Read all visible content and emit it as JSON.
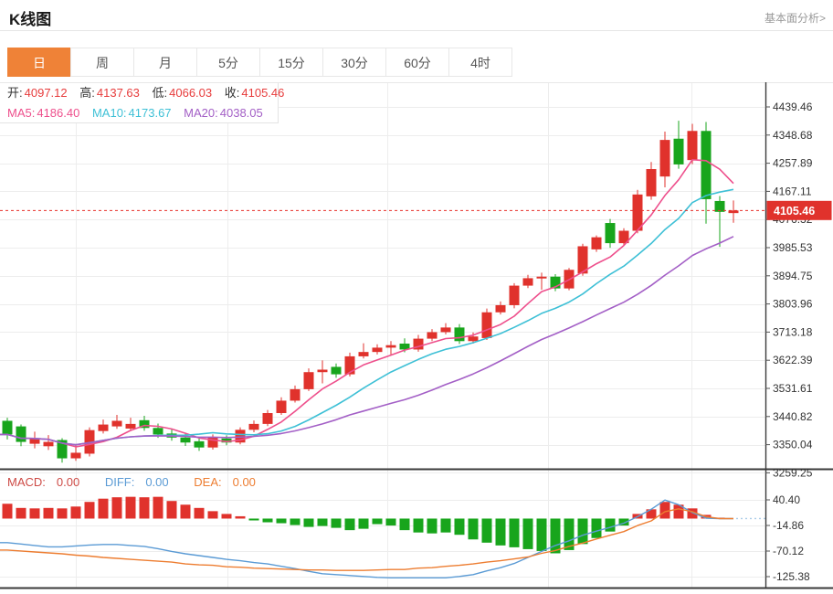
{
  "header": {
    "title": "K线图",
    "analysis_link": "基本面分析>"
  },
  "tabs": {
    "items": [
      {
        "label": "日",
        "active": true
      },
      {
        "label": "周",
        "active": false
      },
      {
        "label": "月",
        "active": false
      },
      {
        "label": "5分",
        "active": false
      },
      {
        "label": "15分",
        "active": false
      },
      {
        "label": "30分",
        "active": false
      },
      {
        "label": "60分",
        "active": false
      },
      {
        "label": "4时",
        "active": false
      }
    ]
  },
  "info": {
    "ohlc": [
      {
        "label": "开:",
        "value": "4097.12"
      },
      {
        "label": "高:",
        "value": "4137.63"
      },
      {
        "label": "低:",
        "value": "4066.03"
      },
      {
        "label": "收:",
        "value": "4105.46"
      }
    ],
    "ma": [
      {
        "label": "MA5:",
        "value": "4186.40"
      },
      {
        "label": "MA10:",
        "value": "4173.67"
      },
      {
        "label": "MA20:",
        "value": "4038.05"
      }
    ]
  },
  "macd_header": [
    {
      "label": "MACD:",
      "value": "0.00"
    },
    {
      "label": "DIFF:",
      "value": "0.00"
    },
    {
      "label": "DEA:",
      "value": "0.00"
    }
  ],
  "price_tag": {
    "value": "4105.46"
  },
  "colors": {
    "accent": "#ef8237",
    "up": "#e0322c",
    "down": "#18a51c",
    "value_red": "#e73c3c",
    "ma5": "#ee4f8c",
    "ma10": "#3ec0d6",
    "ma20": "#a35fc6",
    "macd_text": "#cd4a45",
    "diff": "#5b9bd5",
    "dea": "#ed7d31",
    "price_line": "#e8302a",
    "grid": "#ededed",
    "axis_text": "#333333",
    "dark_line": "#3a3a3a",
    "zero_dash": "#a9cbe8"
  },
  "chart_data": {
    "type": "candlestick",
    "title": "K线图 (日)",
    "legend": [
      "MA5",
      "MA10",
      "MA20",
      "MACD",
      "DIFF",
      "DEA"
    ],
    "main": {
      "y_ticks": [
        4439.46,
        4348.68,
        4257.89,
        4167.11,
        4076.32,
        3985.53,
        3894.75,
        3803.96,
        3713.18,
        3622.39,
        3531.61,
        3440.82,
        3350.04,
        3259.25
      ],
      "last_price": 4105.46,
      "ma_periods": [
        5,
        10,
        20
      ],
      "ohlc_display": {
        "open": 4097.12,
        "high": 4137.63,
        "low": 4066.03,
        "close": 4105.46
      },
      "candles": [
        [
          3427,
          3437,
          3367,
          3383
        ],
        [
          3409,
          3415,
          3345,
          3359
        ],
        [
          3353,
          3392,
          3338,
          3368
        ],
        [
          3345,
          3381,
          3333,
          3359
        ],
        [
          3365,
          3371,
          3292,
          3306
        ],
        [
          3306,
          3352,
          3298,
          3324
        ],
        [
          3321,
          3406,
          3312,
          3397
        ],
        [
          3394,
          3431,
          3386,
          3415
        ],
        [
          3409,
          3446,
          3401,
          3427
        ],
        [
          3402,
          3437,
          3394,
          3417
        ],
        [
          3429,
          3443,
          3395,
          3404
        ],
        [
          3404,
          3418,
          3372,
          3383
        ],
        [
          3386,
          3400,
          3363,
          3373
        ],
        [
          3373,
          3386,
          3346,
          3357
        ],
        [
          3361,
          3375,
          3330,
          3341
        ],
        [
          3341,
          3383,
          3334,
          3373
        ],
        [
          3370,
          3380,
          3348,
          3357
        ],
        [
          3357,
          3406,
          3351,
          3398
        ],
        [
          3398,
          3428,
          3390,
          3417
        ],
        [
          3417,
          3462,
          3410,
          3452
        ],
        [
          3452,
          3503,
          3446,
          3492
        ],
        [
          3492,
          3541,
          3486,
          3529
        ],
        [
          3529,
          3596,
          3523,
          3584
        ],
        [
          3584,
          3622,
          3548,
          3592
        ],
        [
          3601,
          3612,
          3566,
          3577
        ],
        [
          3577,
          3647,
          3570,
          3635
        ],
        [
          3635,
          3677,
          3628,
          3649
        ],
        [
          3649,
          3674,
          3641,
          3663
        ],
        [
          3663,
          3684,
          3640,
          3671
        ],
        [
          3676,
          3693,
          3648,
          3657
        ],
        [
          3657,
          3704,
          3650,
          3692
        ],
        [
          3692,
          3723,
          3684,
          3713
        ],
        [
          3713,
          3742,
          3706,
          3728
        ],
        [
          3728,
          3739,
          3675,
          3684
        ],
        [
          3684,
          3712,
          3676,
          3699
        ],
        [
          3694,
          3789,
          3688,
          3777
        ],
        [
          3777,
          3812,
          3770,
          3800
        ],
        [
          3800,
          3871,
          3790,
          3863
        ],
        [
          3863,
          3898,
          3855,
          3887
        ],
        [
          3887,
          3905,
          3850,
          3892
        ],
        [
          3892,
          3900,
          3845,
          3854
        ],
        [
          3854,
          3920,
          3848,
          3914
        ],
        [
          3902,
          3998,
          3895,
          3990
        ],
        [
          3980,
          4025,
          3972,
          4019
        ],
        [
          4065,
          4078,
          3985,
          4000
        ],
        [
          4000,
          4048,
          3992,
          4040
        ],
        [
          4040,
          4172,
          4032,
          4157
        ],
        [
          4151,
          4262,
          4140,
          4239
        ],
        [
          4215,
          4360,
          4180,
          4333
        ],
        [
          4337,
          4395,
          4240,
          4254
        ],
        [
          4268,
          4385,
          4255,
          4362
        ],
        [
          4362,
          4391,
          4063,
          4142
        ],
        [
          4136,
          4152,
          3988,
          4101
        ],
        [
          4097.12,
          4137.63,
          4066.03,
          4105.46
        ]
      ]
    },
    "macd": {
      "y_ticks": [
        40.4,
        -14.86,
        -70.12,
        -125.38
      ],
      "last_values": {
        "macd": 0.0,
        "diff": 0.0,
        "dea": 0.0
      },
      "histogram": [
        32,
        23,
        22,
        23,
        22,
        26,
        36,
        43,
        46,
        47,
        46,
        47,
        38,
        30,
        23,
        16,
        10,
        5,
        -4,
        -8,
        -10,
        -14,
        -18,
        -16,
        -20,
        -25,
        -22,
        -12,
        -15,
        -25,
        -30,
        -32,
        -30,
        -35,
        -45,
        -52,
        -58,
        -62,
        -66,
        -70,
        -75,
        -68,
        -55,
        -42,
        -28,
        -15,
        10,
        20,
        36,
        30,
        22,
        8,
        2,
        0
      ],
      "diff": [
        -52,
        -55,
        -58,
        -61,
        -61,
        -59,
        -57,
        -56,
        -56,
        -58,
        -60,
        -65,
        -71,
        -76,
        -80,
        -84,
        -88,
        -91,
        -95,
        -98,
        -103,
        -108,
        -114,
        -119,
        -121,
        -123,
        -125,
        -127,
        -128,
        -128,
        -128,
        -128,
        -128,
        -125,
        -121,
        -113,
        -106,
        -97,
        -84,
        -71,
        -58,
        -48,
        -36,
        -27,
        -19,
        -10,
        4,
        20,
        40,
        30,
        13,
        1,
        0,
        0
      ],
      "dea": [
        -68,
        -70,
        -72,
        -74,
        -76,
        -79,
        -81,
        -84,
        -86,
        -88,
        -90,
        -92,
        -94,
        -98,
        -100,
        -101,
        -104,
        -105,
        -107,
        -108,
        -109,
        -110,
        -111,
        -111,
        -112,
        -112,
        -112,
        -111,
        -110,
        -110,
        -107,
        -106,
        -103,
        -101,
        -98,
        -94,
        -91,
        -87,
        -83,
        -75,
        -69,
        -60,
        -53,
        -44,
        -36,
        -28,
        -15,
        -5,
        15,
        21,
        15,
        4,
        0,
        0
      ]
    }
  }
}
